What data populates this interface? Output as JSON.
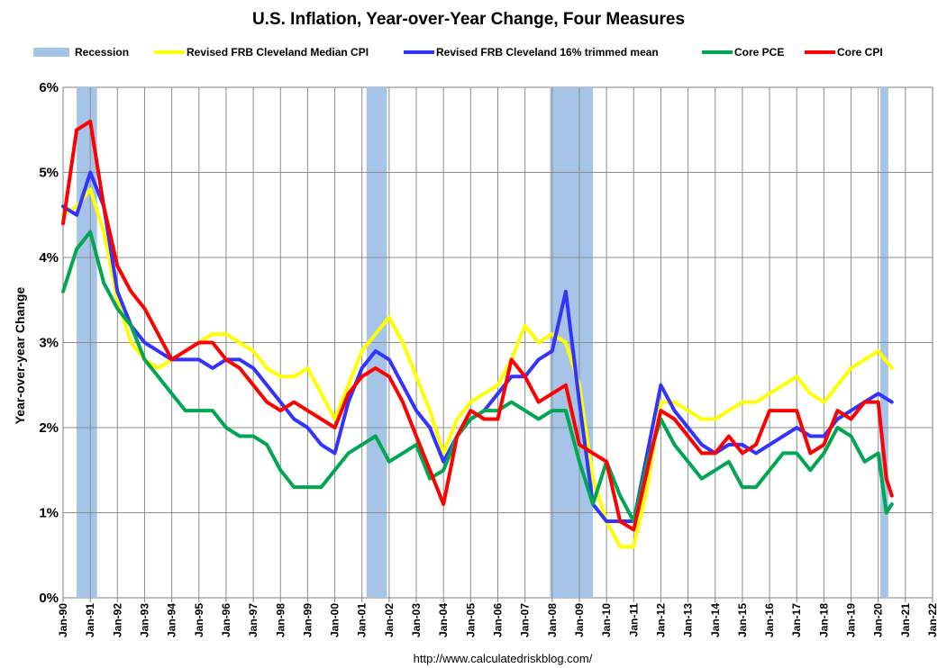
{
  "chart_data": {
    "type": "line",
    "title": "U.S. Inflation, Year-over-Year Change, Four Measures",
    "ylabel": "Year-over-year Change",
    "xlabel": "",
    "ylim": [
      0,
      6
    ],
    "y_ticks": [
      "0%",
      "1%",
      "2%",
      "3%",
      "4%",
      "5%",
      "6%"
    ],
    "x_range": [
      1990.0,
      2022.0
    ],
    "x_tick_labels": [
      "Jan-90",
      "Jan-91",
      "Jan-92",
      "Jan-93",
      "Jan-94",
      "Jan-95",
      "Jan-96",
      "Jan-97",
      "Jan-98",
      "Jan-99",
      "Jan-00",
      "Jan-01",
      "Jan-02",
      "Jan-03",
      "Jan-04",
      "Jan-05",
      "Jan-06",
      "Jan-07",
      "Jan-08",
      "Jan-09",
      "Jan-10",
      "Jan-11",
      "Jan-12",
      "Jan-13",
      "Jan-14",
      "Jan-15",
      "Jan-16",
      "Jan-17",
      "Jan-18",
      "Jan-19",
      "Jan-20",
      "Jan-21",
      "Jan-22"
    ],
    "grid": true,
    "legend_position": "top",
    "recession_label": "Recession",
    "recession_color": "#a6c4e8",
    "recessions": [
      [
        1990.5,
        1991.25
      ],
      [
        2001.17,
        2001.92
      ],
      [
        2007.92,
        2009.5
      ],
      [
        2020.08,
        2020.37
      ]
    ],
    "series": [
      {
        "name": "Revised FRB Cleveland Median CPI",
        "color": "#ffff00",
        "x": [
          1990.0,
          1990.5,
          1991.0,
          1991.5,
          1992.0,
          1992.5,
          1993.0,
          1993.5,
          1994.0,
          1994.5,
          1995.0,
          1995.5,
          1996.0,
          1996.5,
          1997.0,
          1997.5,
          1998.0,
          1998.5,
          1999.0,
          1999.5,
          2000.0,
          2000.5,
          2001.0,
          2001.5,
          2002.0,
          2002.5,
          2003.0,
          2003.5,
          2004.0,
          2004.5,
          2005.0,
          2005.5,
          2006.0,
          2006.5,
          2007.0,
          2007.5,
          2008.0,
          2008.5,
          2009.0,
          2009.5,
          2010.0,
          2010.5,
          2011.0,
          2011.5,
          2012.0,
          2012.5,
          2013.0,
          2013.5,
          2014.0,
          2014.5,
          2015.0,
          2015.5,
          2016.0,
          2016.5,
          2017.0,
          2017.5,
          2018.0,
          2018.5,
          2019.0,
          2019.5,
          2020.0,
          2020.5
        ],
        "y": [
          4.5,
          4.6,
          4.8,
          4.3,
          3.5,
          3.0,
          2.8,
          2.7,
          2.8,
          2.9,
          3.0,
          3.1,
          3.1,
          3.0,
          2.9,
          2.7,
          2.6,
          2.6,
          2.7,
          2.4,
          2.1,
          2.5,
          2.9,
          3.1,
          3.3,
          3.0,
          2.6,
          2.2,
          1.7,
          2.1,
          2.3,
          2.4,
          2.5,
          2.8,
          3.2,
          3.0,
          3.1,
          3.0,
          2.5,
          1.4,
          0.9,
          0.6,
          0.6,
          1.3,
          2.3,
          2.3,
          2.2,
          2.1,
          2.1,
          2.2,
          2.3,
          2.3,
          2.4,
          2.5,
          2.6,
          2.4,
          2.3,
          2.5,
          2.7,
          2.8,
          2.9,
          2.7
        ]
      },
      {
        "name": "Revised FRB Cleveland 16% trimmed mean",
        "color": "#3333ff",
        "x": [
          1990.0,
          1990.5,
          1991.0,
          1991.5,
          1992.0,
          1992.5,
          1993.0,
          1993.5,
          1994.0,
          1994.5,
          1995.0,
          1995.5,
          1996.0,
          1996.5,
          1997.0,
          1997.5,
          1998.0,
          1998.5,
          1999.0,
          1999.5,
          2000.0,
          2000.5,
          2001.0,
          2001.5,
          2002.0,
          2002.5,
          2003.0,
          2003.5,
          2004.0,
          2004.5,
          2005.0,
          2005.5,
          2006.0,
          2006.5,
          2007.0,
          2007.5,
          2008.0,
          2008.5,
          2009.0,
          2009.5,
          2010.0,
          2010.5,
          2011.0,
          2011.5,
          2012.0,
          2012.5,
          2013.0,
          2013.5,
          2014.0,
          2014.5,
          2015.0,
          2015.5,
          2016.0,
          2016.5,
          2017.0,
          2017.5,
          2018.0,
          2018.5,
          2019.0,
          2019.5,
          2020.0,
          2020.5
        ],
        "y": [
          4.6,
          4.5,
          5.0,
          4.6,
          3.6,
          3.2,
          3.0,
          2.9,
          2.8,
          2.8,
          2.8,
          2.7,
          2.8,
          2.8,
          2.7,
          2.5,
          2.3,
          2.1,
          2.0,
          1.8,
          1.7,
          2.3,
          2.7,
          2.9,
          2.8,
          2.5,
          2.2,
          2.0,
          1.6,
          1.9,
          2.1,
          2.2,
          2.4,
          2.6,
          2.6,
          2.8,
          2.9,
          3.6,
          2.3,
          1.1,
          0.9,
          0.9,
          0.9,
          1.7,
          2.5,
          2.2,
          2.0,
          1.8,
          1.7,
          1.8,
          1.8,
          1.7,
          1.8,
          1.9,
          2.0,
          1.9,
          1.9,
          2.1,
          2.2,
          2.3,
          2.4,
          2.3
        ]
      },
      {
        "name": "Core PCE",
        "color": "#00a651",
        "x": [
          1990.0,
          1990.5,
          1991.0,
          1991.5,
          1992.0,
          1992.5,
          1993.0,
          1993.5,
          1994.0,
          1994.5,
          1995.0,
          1995.5,
          1996.0,
          1996.5,
          1997.0,
          1997.5,
          1998.0,
          1998.5,
          1999.0,
          1999.5,
          2000.0,
          2000.5,
          2001.0,
          2001.5,
          2002.0,
          2002.5,
          2003.0,
          2003.5,
          2004.0,
          2004.5,
          2005.0,
          2005.5,
          2006.0,
          2006.5,
          2007.0,
          2007.5,
          2008.0,
          2008.5,
          2009.0,
          2009.5,
          2010.0,
          2010.5,
          2011.0,
          2011.5,
          2012.0,
          2012.5,
          2013.0,
          2013.5,
          2014.0,
          2014.5,
          2015.0,
          2015.5,
          2016.0,
          2016.5,
          2017.0,
          2017.5,
          2018.0,
          2018.5,
          2019.0,
          2019.5,
          2020.0,
          2020.3,
          2020.5
        ],
        "y": [
          3.6,
          4.1,
          4.3,
          3.7,
          3.4,
          3.2,
          2.8,
          2.6,
          2.4,
          2.2,
          2.2,
          2.2,
          2.0,
          1.9,
          1.9,
          1.8,
          1.5,
          1.3,
          1.3,
          1.3,
          1.5,
          1.7,
          1.8,
          1.9,
          1.6,
          1.7,
          1.8,
          1.4,
          1.5,
          1.9,
          2.1,
          2.2,
          2.2,
          2.3,
          2.2,
          2.1,
          2.2,
          2.2,
          1.6,
          1.1,
          1.6,
          1.2,
          0.9,
          1.6,
          2.1,
          1.8,
          1.6,
          1.4,
          1.5,
          1.6,
          1.3,
          1.3,
          1.5,
          1.7,
          1.7,
          1.5,
          1.7,
          2.0,
          1.9,
          1.6,
          1.7,
          1.0,
          1.1
        ]
      },
      {
        "name": "Core CPI",
        "color": "#ff0000",
        "x": [
          1990.0,
          1990.5,
          1991.0,
          1991.5,
          1992.0,
          1992.5,
          1993.0,
          1993.5,
          1994.0,
          1994.5,
          1995.0,
          1995.5,
          1996.0,
          1996.5,
          1997.0,
          1997.5,
          1998.0,
          1998.5,
          1999.0,
          1999.5,
          2000.0,
          2000.5,
          2001.0,
          2001.5,
          2002.0,
          2002.5,
          2003.0,
          2003.5,
          2004.0,
          2004.5,
          2005.0,
          2005.5,
          2006.0,
          2006.5,
          2007.0,
          2007.5,
          2008.0,
          2008.5,
          2009.0,
          2009.5,
          2010.0,
          2010.5,
          2011.0,
          2011.5,
          2012.0,
          2012.5,
          2013.0,
          2013.5,
          2014.0,
          2014.5,
          2015.0,
          2015.5,
          2016.0,
          2016.5,
          2017.0,
          2017.5,
          2018.0,
          2018.5,
          2019.0,
          2019.5,
          2020.0,
          2020.3,
          2020.5
        ],
        "y": [
          4.4,
          5.5,
          5.6,
          4.6,
          3.9,
          3.6,
          3.4,
          3.1,
          2.8,
          2.9,
          3.0,
          3.0,
          2.8,
          2.7,
          2.5,
          2.3,
          2.2,
          2.3,
          2.2,
          2.1,
          2.0,
          2.4,
          2.6,
          2.7,
          2.6,
          2.3,
          1.9,
          1.5,
          1.1,
          1.9,
          2.2,
          2.1,
          2.1,
          2.8,
          2.6,
          2.3,
          2.4,
          2.5,
          1.8,
          1.7,
          1.6,
          0.9,
          0.8,
          1.5,
          2.2,
          2.1,
          1.9,
          1.7,
          1.7,
          1.9,
          1.7,
          1.8,
          2.2,
          2.2,
          2.2,
          1.7,
          1.8,
          2.2,
          2.1,
          2.3,
          2.3,
          1.4,
          1.2
        ]
      }
    ]
  },
  "footer": {
    "source": "http://www.calculatedriskblog.com/"
  }
}
